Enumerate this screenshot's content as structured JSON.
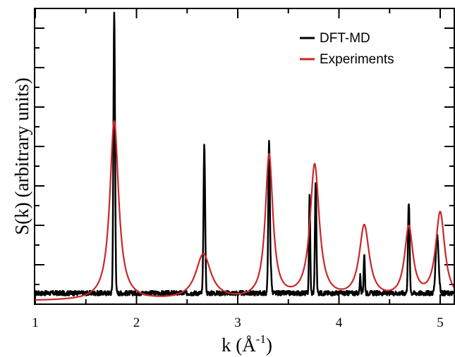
{
  "chart_data": {
    "type": "line",
    "xlabel": "k (Å",
    "xlabel_sup": "-1",
    "xlabel_close": ")",
    "ylabel": "S(k) (arbitrary units)",
    "xlim": [
      1,
      5.15
    ],
    "ylim": [
      0,
      7.5
    ],
    "x_ticks": [
      "1",
      "2",
      "3",
      "4",
      "5"
    ],
    "grid": false,
    "legend_position": "top-right",
    "series": [
      {
        "name": "DFT-MD",
        "color": "#000000",
        "baseline": 0.28,
        "peaks": [
          {
            "k": 1.78,
            "height": 7.1,
            "width": 0.008
          },
          {
            "k": 2.67,
            "height": 3.75,
            "width": 0.008
          },
          {
            "k": 3.31,
            "height": 3.85,
            "width": 0.008
          },
          {
            "k": 3.33,
            "height": 0.4,
            "width": 0.006
          },
          {
            "k": 3.71,
            "height": 2.5,
            "width": 0.006
          },
          {
            "k": 3.77,
            "height": 2.85,
            "width": 0.007
          },
          {
            "k": 4.21,
            "height": 0.45,
            "width": 0.005
          },
          {
            "k": 4.25,
            "height": 1.0,
            "width": 0.006
          },
          {
            "k": 4.69,
            "height": 2.3,
            "width": 0.008
          },
          {
            "k": 4.97,
            "height": 1.5,
            "width": 0.014
          }
        ]
      },
      {
        "name": "Experiments",
        "color": "#c8282a",
        "baseline": 0.08,
        "peaks": [
          {
            "k": 1.78,
            "height": 4.55,
            "width": 0.052
          },
          {
            "k": 2.66,
            "height": 1.15,
            "width": 0.09
          },
          {
            "k": 3.31,
            "height": 3.65,
            "width": 0.045
          },
          {
            "k": 3.76,
            "height": 3.4,
            "width": 0.055
          },
          {
            "k": 4.25,
            "height": 1.85,
            "width": 0.06
          },
          {
            "k": 4.69,
            "height": 1.8,
            "width": 0.05
          },
          {
            "k": 5.0,
            "height": 2.2,
            "width": 0.055
          }
        ]
      }
    ]
  }
}
